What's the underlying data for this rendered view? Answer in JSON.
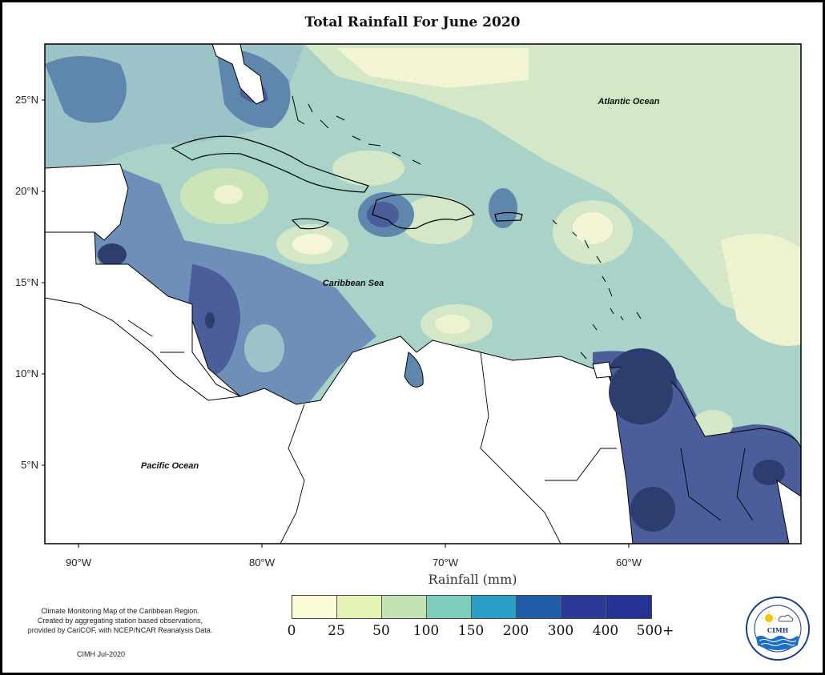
{
  "title": "Total Rainfall For June 2020",
  "axes": {
    "lat_labels": [
      "25°N",
      "20°N",
      "15°N",
      "10°N",
      "5°N"
    ],
    "lon_labels": [
      "90°W",
      "80°W",
      "70°W",
      "60°W"
    ]
  },
  "regions": {
    "atlantic": "Atlantic Ocean",
    "caribbean": "Caribbean Sea",
    "pacific": "Pacific Ocean"
  },
  "legend": {
    "title": "Rainfall (mm)",
    "ticks": [
      "0",
      "25",
      "50",
      "100",
      "150",
      "200",
      "300",
      "400",
      "500+"
    ],
    "colors": [
      "#fcfcd6",
      "#e4f2b4",
      "#c3e3b4",
      "#7fcdbb",
      "#2c9fc8",
      "#225ea8",
      "#2a3a96",
      "#253494",
      "#081d58"
    ]
  },
  "credit": {
    "lines": [
      "Climate Monitoring Map of the Caribbean Region.",
      "Created by aggregating station based observations,",
      "provided by CariCOF, with NCEP/NCAR Reanalysis Data."
    ],
    "date": "CIMH Jul-2020"
  },
  "logo": {
    "text": "CIMH",
    "ring_text": "Caribbean Institute for Meteorology and Hydrology"
  }
}
